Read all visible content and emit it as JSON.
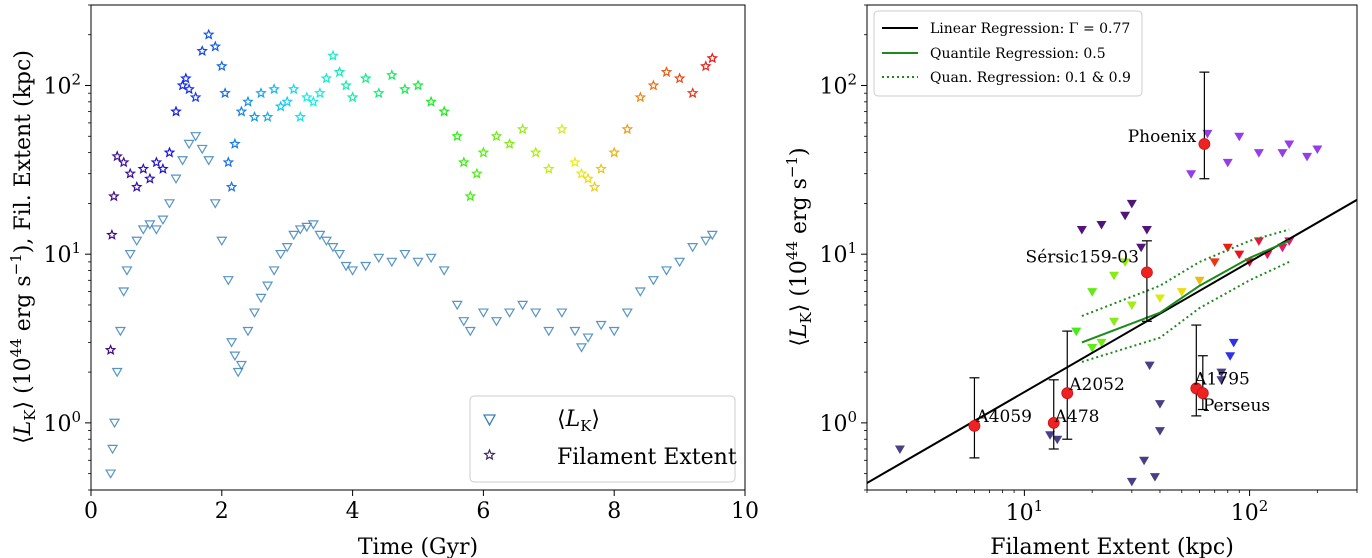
{
  "chart_data": [
    {
      "type": "scatter",
      "xlabel": "Time (Gyr)",
      "ylabel": "⟨L_K⟩ (10^44 erg s^-1), Fil. Extent (kpc)",
      "xlim": [
        0,
        10
      ],
      "ylim": [
        0.4,
        300
      ],
      "yscale": "log",
      "x_ticks": [
        "0",
        "2",
        "4",
        "6",
        "8",
        "10"
      ],
      "y_ticks": [
        {
          "base": "10",
          "exp": "0",
          "value": 1
        },
        {
          "base": "10",
          "exp": "1",
          "value": 10
        },
        {
          "base": "10",
          "exp": "2",
          "value": 100
        }
      ],
      "legend_position": "lower-right",
      "series": [
        {
          "name": "⟨L_K⟩",
          "marker": "open-triangle-down",
          "color": "#3b82b8",
          "points": [
            [
              0.3,
              0.5
            ],
            [
              0.33,
              0.7
            ],
            [
              0.36,
              1.0
            ],
            [
              0.4,
              2.0
            ],
            [
              0.45,
              3.5
            ],
            [
              0.5,
              6
            ],
            [
              0.55,
              8
            ],
            [
              0.6,
              10
            ],
            [
              0.7,
              12
            ],
            [
              0.8,
              14
            ],
            [
              0.9,
              15
            ],
            [
              1.0,
              14
            ],
            [
              1.1,
              16
            ],
            [
              1.2,
              20
            ],
            [
              1.3,
              28
            ],
            [
              1.4,
              36
            ],
            [
              1.5,
              45
            ],
            [
              1.6,
              50
            ],
            [
              1.7,
              42
            ],
            [
              1.8,
              36
            ],
            [
              1.9,
              20
            ],
            [
              2.0,
              12
            ],
            [
              2.1,
              7
            ],
            [
              2.15,
              3
            ],
            [
              2.2,
              2.5
            ],
            [
              2.25,
              2.0
            ],
            [
              2.3,
              2.2
            ],
            [
              2.4,
              3.5
            ],
            [
              2.5,
              4.5
            ],
            [
              2.6,
              5.5
            ],
            [
              2.7,
              6.5
            ],
            [
              2.8,
              8
            ],
            [
              2.9,
              10
            ],
            [
              3.0,
              11
            ],
            [
              3.1,
              13
            ],
            [
              3.2,
              14
            ],
            [
              3.3,
              14.5
            ],
            [
              3.4,
              15
            ],
            [
              3.5,
              13
            ],
            [
              3.6,
              12
            ],
            [
              3.7,
              11
            ],
            [
              3.8,
              10
            ],
            [
              3.9,
              8.5
            ],
            [
              4.0,
              8
            ],
            [
              4.2,
              8.5
            ],
            [
              4.4,
              9.5
            ],
            [
              4.6,
              9
            ],
            [
              4.8,
              10
            ],
            [
              5.0,
              9
            ],
            [
              5.2,
              9.5
            ],
            [
              5.4,
              8
            ],
            [
              5.6,
              5
            ],
            [
              5.7,
              4
            ],
            [
              5.8,
              3.5
            ],
            [
              6.0,
              4.5
            ],
            [
              6.2,
              4.0
            ],
            [
              6.4,
              4.5
            ],
            [
              6.6,
              5
            ],
            [
              6.8,
              4.5
            ],
            [
              7.0,
              3.5
            ],
            [
              7.2,
              4.5
            ],
            [
              7.4,
              3.5
            ],
            [
              7.5,
              2.8
            ],
            [
              7.6,
              3.2
            ],
            [
              7.8,
              3.8
            ],
            [
              8.0,
              3.5
            ],
            [
              8.2,
              4.5
            ],
            [
              8.4,
              6
            ],
            [
              8.6,
              7
            ],
            [
              8.8,
              8
            ],
            [
              9.0,
              9
            ],
            [
              9.2,
              11
            ],
            [
              9.4,
              12
            ],
            [
              9.5,
              13
            ]
          ]
        },
        {
          "name": "Filament Extent",
          "marker": "star",
          "color": "rainbow-by-time",
          "points": [
            [
              0.3,
              2.7
            ],
            [
              0.32,
              13
            ],
            [
              0.35,
              22
            ],
            [
              0.4,
              38
            ],
            [
              0.5,
              35
            ],
            [
              0.6,
              30
            ],
            [
              0.7,
              25
            ],
            [
              0.8,
              32
            ],
            [
              0.9,
              28
            ],
            [
              1.0,
              35
            ],
            [
              1.1,
              32
            ],
            [
              1.2,
              40
            ],
            [
              1.3,
              70
            ],
            [
              1.4,
              100
            ],
            [
              1.45,
              110
            ],
            [
              1.5,
              95
            ],
            [
              1.6,
              85
            ],
            [
              1.7,
              160
            ],
            [
              1.8,
              200
            ],
            [
              1.9,
              170
            ],
            [
              2.0,
              130
            ],
            [
              2.05,
              90
            ],
            [
              2.1,
              35
            ],
            [
              2.15,
              25
            ],
            [
              2.2,
              45
            ],
            [
              2.3,
              70
            ],
            [
              2.4,
              80
            ],
            [
              2.5,
              65
            ],
            [
              2.6,
              90
            ],
            [
              2.7,
              65
            ],
            [
              2.8,
              95
            ],
            [
              2.9,
              75
            ],
            [
              3.0,
              80
            ],
            [
              3.1,
              95
            ],
            [
              3.2,
              65
            ],
            [
              3.3,
              85
            ],
            [
              3.4,
              80
            ],
            [
              3.5,
              90
            ],
            [
              3.6,
              110
            ],
            [
              3.7,
              150
            ],
            [
              3.8,
              120
            ],
            [
              3.9,
              100
            ],
            [
              4.0,
              85
            ],
            [
              4.2,
              110
            ],
            [
              4.4,
              90
            ],
            [
              4.6,
              115
            ],
            [
              4.8,
              95
            ],
            [
              5.0,
              100
            ],
            [
              5.2,
              80
            ],
            [
              5.4,
              70
            ],
            [
              5.6,
              50
            ],
            [
              5.7,
              35
            ],
            [
              5.8,
              22
            ],
            [
              5.9,
              30
            ],
            [
              6.0,
              40
            ],
            [
              6.2,
              50
            ],
            [
              6.4,
              45
            ],
            [
              6.6,
              55
            ],
            [
              6.8,
              40
            ],
            [
              7.0,
              32
            ],
            [
              7.2,
              55
            ],
            [
              7.4,
              35
            ],
            [
              7.5,
              30
            ],
            [
              7.6,
              28
            ],
            [
              7.7,
              25
            ],
            [
              7.8,
              32
            ],
            [
              8.0,
              40
            ],
            [
              8.2,
              55
            ],
            [
              8.4,
              85
            ],
            [
              8.6,
              100
            ],
            [
              8.8,
              120
            ],
            [
              9.0,
              110
            ],
            [
              9.2,
              90
            ],
            [
              9.4,
              130
            ],
            [
              9.5,
              145
            ]
          ]
        }
      ]
    },
    {
      "type": "scatter",
      "xlabel": "Filament Extent (kpc)",
      "ylabel": "⟨L_K⟩ (10^44 erg s^-1)",
      "xscale": "log",
      "yscale": "log",
      "xlim": [
        2,
        300
      ],
      "ylim": [
        0.4,
        300
      ],
      "x_ticks": [
        {
          "base": "10",
          "exp": "1",
          "value": 10
        },
        {
          "base": "10",
          "exp": "2",
          "value": 100
        }
      ],
      "y_ticks": [
        {
          "base": "10",
          "exp": "0",
          "value": 1
        },
        {
          "base": "10",
          "exp": "1",
          "value": 10
        },
        {
          "base": "10",
          "exp": "2",
          "value": 100
        }
      ],
      "legend_position": "top-left",
      "lines": [
        {
          "name": "Linear Regression: Γ = 0.77",
          "style": "solid",
          "color": "#000000",
          "x": [
            2,
            300
          ],
          "y": [
            0.44,
            21
          ]
        },
        {
          "name": "Quantile Regression: 0.5",
          "style": "solid",
          "color": "#1a8a1a",
          "x": [
            18,
            40,
            60,
            100,
            150
          ],
          "y": [
            3.0,
            4.5,
            6.5,
            9.5,
            12
          ]
        },
        {
          "name": "Quan. Regression: 0.1 & 0.9",
          "style": "dotted",
          "color": "#1a8a1a",
          "x": [
            18,
            40,
            60,
            100,
            150
          ],
          "y": [
            2.3,
            3.2,
            4.8,
            7,
            9
          ]
        },
        {
          "name": "",
          "style": "dotted",
          "color": "#1a8a1a",
          "x": [
            18,
            40,
            60,
            100,
            150
          ],
          "y": [
            4.3,
            6.5,
            9,
            12,
            14
          ]
        }
      ],
      "observations": [
        {
          "name": "Phoenix",
          "x": 63,
          "y": 45,
          "yerr": [
            28,
            120
          ]
        },
        {
          "name": "Sérsic159-03",
          "x": 35,
          "y": 7.8,
          "yerr": [
            4,
            12
          ]
        },
        {
          "name": "A2052",
          "x": 15.5,
          "y": 1.5,
          "yerr": [
            0.8,
            3.5
          ]
        },
        {
          "name": "A478",
          "x": 13.5,
          "y": 1.0,
          "yerr": [
            0.7,
            1.8
          ]
        },
        {
          "name": "A4059",
          "x": 6,
          "y": 0.96,
          "yerr": [
            0.62,
            1.85
          ]
        },
        {
          "name": "A1795",
          "x": 58,
          "y": 1.6,
          "yerr": [
            1.1,
            3.8
          ]
        },
        {
          "name": "Perseus",
          "x": 62,
          "y": 1.5,
          "yerr": [
            1.2,
            2.5
          ]
        }
      ],
      "simulation_points": [
        [
          2.8,
          0.7
        ],
        [
          13,
          0.85
        ],
        [
          14,
          0.8
        ],
        [
          22,
          3.0
        ],
        [
          30,
          0.45
        ],
        [
          38,
          0.48
        ],
        [
          34,
          0.6
        ],
        [
          40,
          0.9
        ],
        [
          40,
          1.3
        ],
        [
          36,
          2.2
        ],
        [
          20,
          6.0
        ],
        [
          25,
          7.5
        ],
        [
          28,
          9.0
        ],
        [
          18,
          14
        ],
        [
          22,
          15
        ],
        [
          28,
          17
        ],
        [
          35,
          14
        ],
        [
          33,
          11
        ],
        [
          30,
          20
        ],
        [
          55,
          30
        ],
        [
          80,
          35
        ],
        [
          110,
          40
        ],
        [
          150,
          45
        ],
        [
          200,
          42
        ],
        [
          180,
          38
        ],
        [
          140,
          40
        ],
        [
          90,
          50
        ],
        [
          65,
          52
        ],
        [
          75,
          2.0
        ],
        [
          85,
          3.0
        ],
        [
          82,
          2.5
        ],
        [
          75,
          1.8
        ],
        [
          17,
          3.5
        ],
        [
          20,
          2.8
        ],
        [
          25,
          4.0
        ],
        [
          30,
          5.0
        ],
        [
          40,
          5.5
        ],
        [
          50,
          6.0
        ],
        [
          60,
          7.0
        ],
        [
          70,
          9.0
        ],
        [
          90,
          10
        ],
        [
          100,
          9.0
        ],
        [
          120,
          10
        ],
        [
          140,
          11
        ],
        [
          150,
          12
        ],
        [
          110,
          12
        ],
        [
          80,
          11
        ]
      ]
    }
  ]
}
